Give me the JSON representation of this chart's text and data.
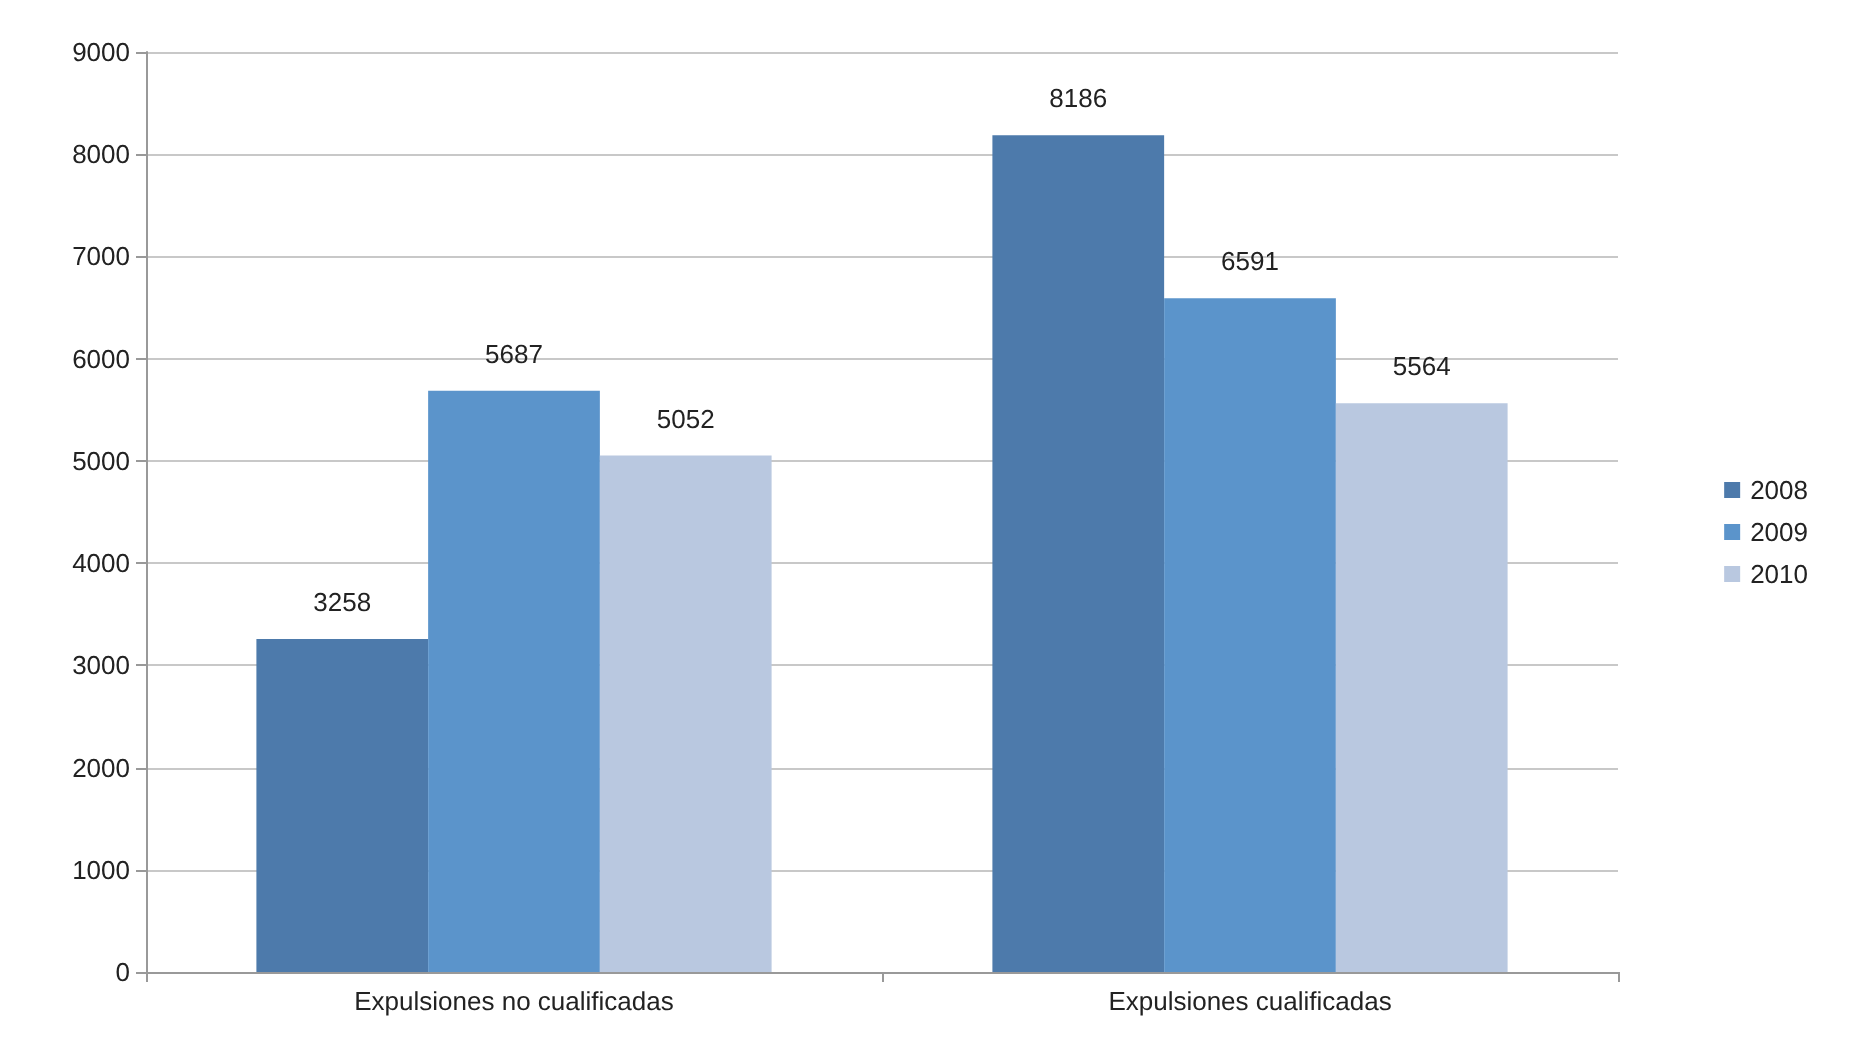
{
  "chart_data": {
    "type": "bar",
    "categories": [
      "Expulsiones no cualificadas",
      "Expulsiones cualificadas"
    ],
    "series": [
      {
        "name": "2008",
        "color": "#4d7aab",
        "values": [
          3258,
          8186
        ]
      },
      {
        "name": "2009",
        "color": "#5b94cb",
        "values": [
          5687,
          6591
        ]
      },
      {
        "name": "2010",
        "color": "#b9c8e0",
        "values": [
          5052,
          5564
        ]
      }
    ],
    "ylim": [
      0,
      9000
    ],
    "yticks": [
      0,
      1000,
      2000,
      3000,
      4000,
      5000,
      6000,
      7000,
      8000,
      9000
    ],
    "grid": "y",
    "legend": "right",
    "data_labels": true
  }
}
